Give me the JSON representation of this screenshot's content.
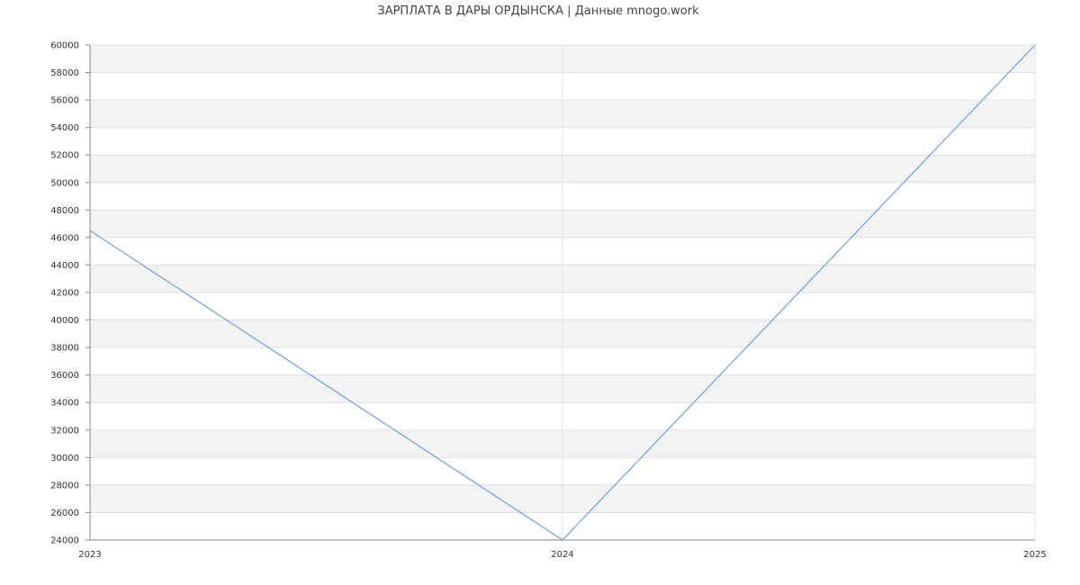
{
  "chart_data": {
    "type": "line",
    "title": "ЗАРПЛАТА В ДАРЫ ОРДЫНСКА | Данные mnogo.work",
    "xlabel": "",
    "ylabel": "",
    "x": [
      "2023",
      "2024",
      "2025"
    ],
    "series": [
      {
        "values": [
          46500,
          24000,
          60000
        ],
        "color": "#6d9eeb"
      }
    ],
    "ylim": [
      24000,
      60000
    ],
    "yticks": [
      24000,
      26000,
      28000,
      30000,
      32000,
      34000,
      36000,
      38000,
      40000,
      42000,
      44000,
      46000,
      48000,
      50000,
      52000,
      54000,
      56000,
      58000,
      60000
    ],
    "grid": true,
    "band_color": "#f3f3f3",
    "grid_color": "#e0e0e0",
    "axis_color": "#888888"
  }
}
